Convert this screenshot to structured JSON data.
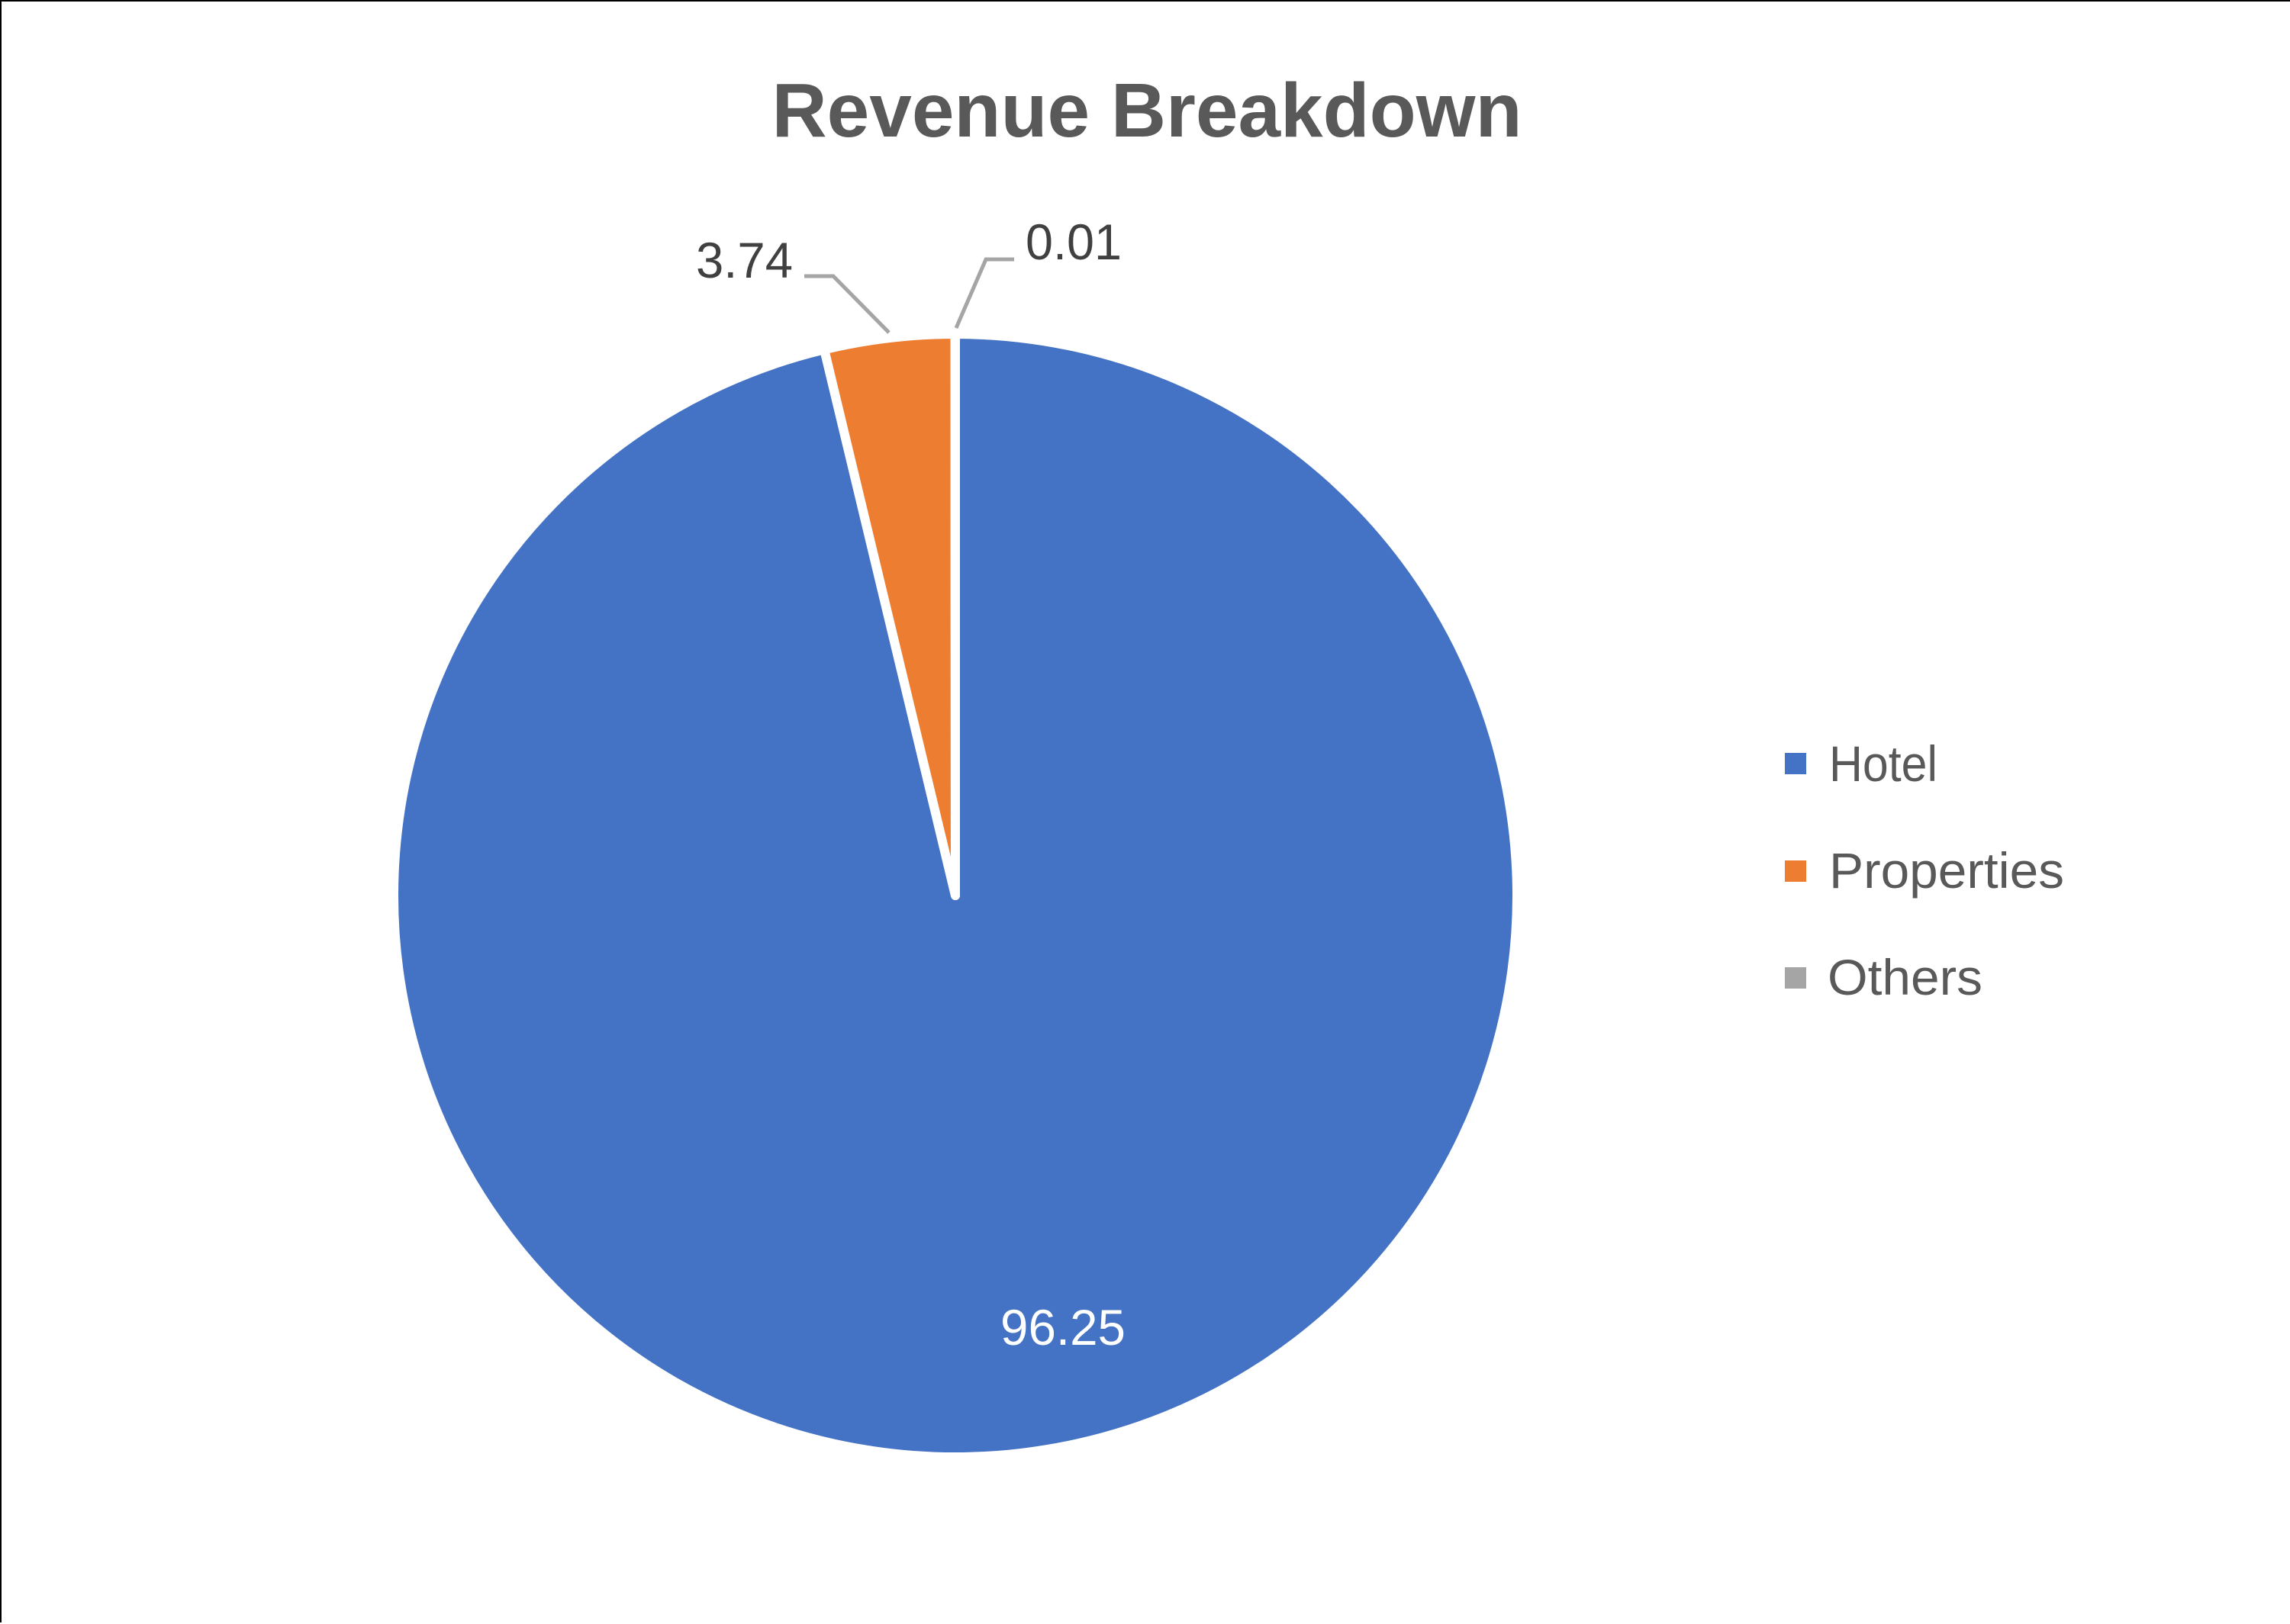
{
  "chart_data": {
    "type": "pie",
    "title": "Revenue Breakdown",
    "categories": [
      "Hotel",
      "Properties",
      "Others"
    ],
    "values": [
      96.25,
      3.74,
      0.01
    ],
    "colors": [
      "#4472C4",
      "#ED7D31",
      "#A5A5A5"
    ],
    "data_labels": [
      "96.25",
      "3.74",
      "0.01"
    ],
    "legend_position": "right",
    "start_angle_deg": 0,
    "direction": "clockwise"
  },
  "title": "Revenue Breakdown",
  "labels": {
    "hotel": "96.25",
    "properties": "3.74",
    "others": "0.01"
  },
  "legend": {
    "items": [
      {
        "label": "Hotel",
        "color": "#4472C4"
      },
      {
        "label": "Properties",
        "color": "#ED7D31"
      },
      {
        "label": "Others",
        "color": "#A5A5A5"
      }
    ]
  }
}
